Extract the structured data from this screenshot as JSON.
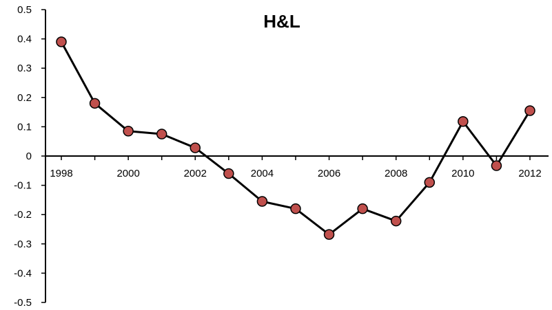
{
  "chart_data": {
    "type": "line",
    "title": "H&L",
    "xlabel": "",
    "ylabel": "",
    "x": [
      1998,
      1999,
      2000,
      2001,
      2002,
      2003,
      2004,
      2005,
      2006,
      2007,
      2008,
      2009,
      2010,
      2011,
      2012
    ],
    "series": [
      {
        "values": [
          0.39,
          0.18,
          0.085,
          0.075,
          0.028,
          -0.06,
          -0.155,
          -0.18,
          -0.268,
          -0.18,
          -0.222,
          -0.09,
          0.118,
          -0.033,
          0.155
        ],
        "line_color": "#000000",
        "marker_color": "#C0504D"
      }
    ],
    "x_tick_labels": [
      "1998",
      "2000",
      "2002",
      "2004",
      "2006",
      "2008",
      "2010",
      "2012"
    ],
    "y_tick_labels": [
      "0.5",
      "0.4",
      "0.3",
      "0.2",
      "0.1",
      "0",
      "-0.1",
      "-0.2",
      "-0.3",
      "-0.4",
      "-0.5"
    ],
    "ylim": [
      -0.5,
      0.5
    ],
    "xlim": [
      1998,
      2012
    ],
    "grid": false,
    "legend": "none"
  }
}
